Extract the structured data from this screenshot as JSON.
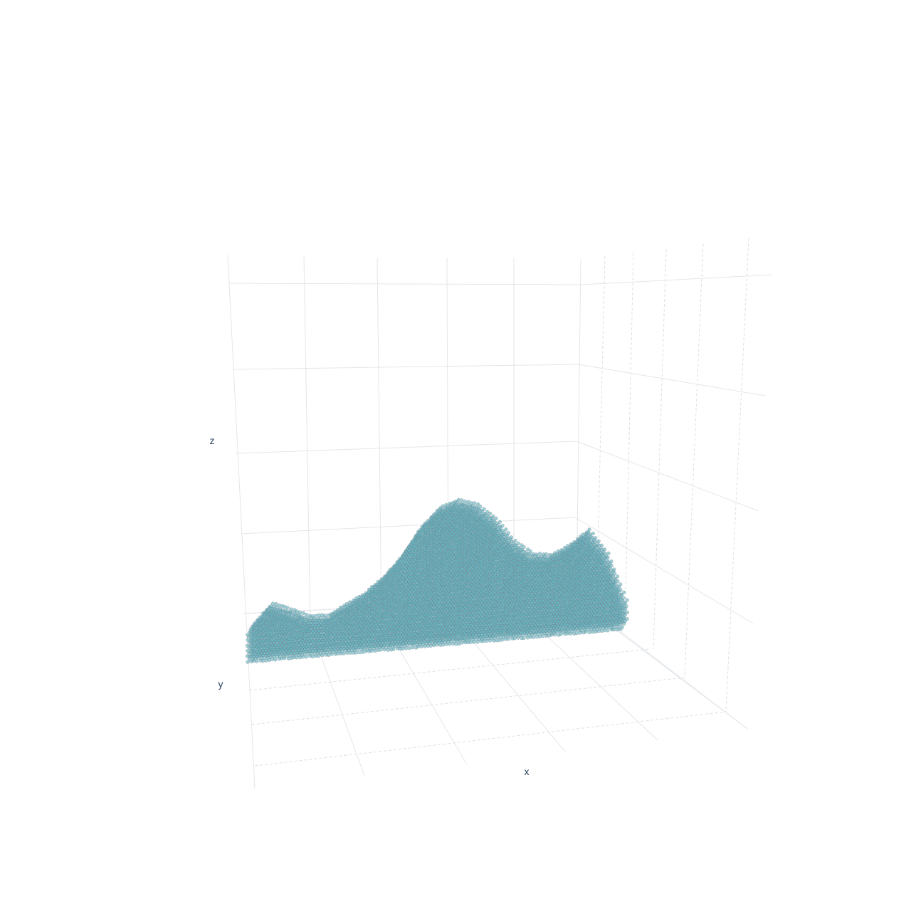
{
  "chart_data": {
    "type": "scatter3d",
    "title": "",
    "axes": {
      "x": {
        "title": "x",
        "ticks_visible": false,
        "grid": true
      },
      "y": {
        "title": "y",
        "ticks_visible": false,
        "grid": true
      },
      "z": {
        "title": "z",
        "ticks_visible": false,
        "grid": true
      }
    },
    "marker": {
      "color": "#5fb3c1",
      "outline": "#8a9599",
      "opacity": 0.6
    },
    "surface_profile": {
      "x": [
        0,
        0.05,
        0.1,
        0.15,
        0.2,
        0.25,
        0.3,
        0.35,
        0.4,
        0.45,
        0.5,
        0.55,
        0.6,
        0.65,
        0.7,
        0.75,
        0.8,
        0.85,
        0.9,
        0.95,
        1.0
      ],
      "z_max": [
        0.12,
        0.28,
        0.22,
        0.15,
        0.14,
        0.22,
        0.3,
        0.42,
        0.58,
        0.8,
        0.95,
        1.0,
        0.95,
        0.82,
        0.62,
        0.5,
        0.48,
        0.55,
        0.66,
        0.45,
        0.05
      ]
    }
  }
}
